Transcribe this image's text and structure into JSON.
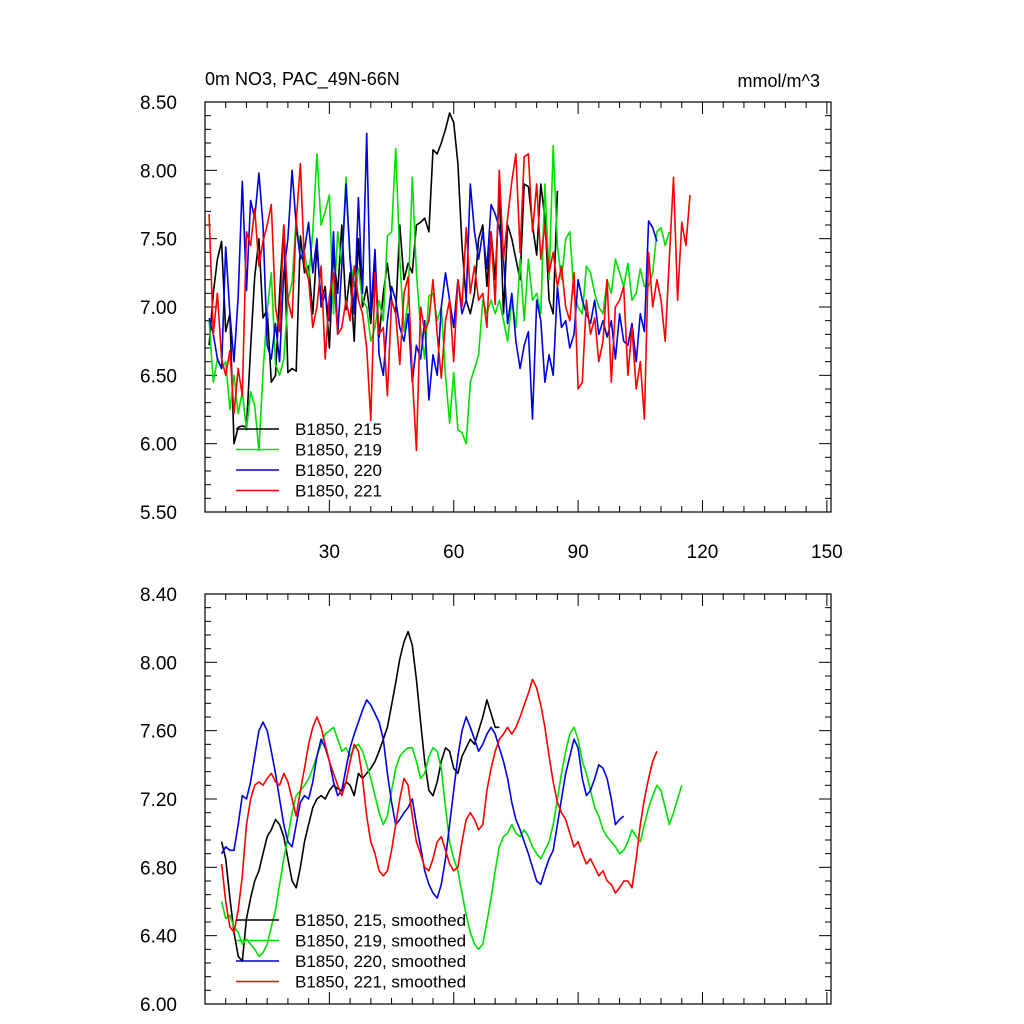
{
  "chart_data": [
    {
      "type": "line",
      "title": "0m NO3, PAC_49N-66N",
      "units": "mmol/m^3",
      "xlabel": "",
      "ylabel": "",
      "xlim": [
        0,
        151
      ],
      "ylim": [
        5.5,
        8.5
      ],
      "xticks": [
        30,
        60,
        90,
        120,
        150
      ],
      "xtick_labels": [
        "30",
        "60",
        "90",
        "120",
        "150"
      ],
      "yticks": [
        5.5,
        6.0,
        6.5,
        7.0,
        7.5,
        8.0,
        8.5
      ],
      "ytick_labels": [
        "5.50",
        "6.00",
        "6.50",
        "7.00",
        "7.50",
        "8.00",
        "8.50"
      ],
      "legend_position": "bottom-left",
      "series": [
        {
          "name": "B1850, 215",
          "color": "#000000",
          "x_start": 1,
          "values": [
            6.72,
            7.1,
            7.35,
            7.48,
            6.82,
            6.95,
            6.0,
            6.12,
            6.13,
            6.12,
            6.7,
            7.22,
            7.5,
            6.92,
            6.98,
            6.45,
            6.5,
            7.1,
            7.6,
            6.52,
            6.55,
            6.53,
            7.52,
            7.25,
            7.3,
            6.95,
            7.44,
            7.05,
            7.15,
            6.7,
            7.4,
            7.1,
            7.6,
            6.98,
            7.25,
            6.75,
            7.5,
            7.0,
            7.15,
            6.88,
            7.35,
            6.78,
            7.1,
            7.32,
            7.05,
            6.95,
            7.6,
            7.2,
            7.32,
            7.25,
            7.6,
            7.62,
            7.65,
            7.55,
            8.15,
            8.12,
            8.2,
            8.3,
            8.42,
            8.35,
            8.05,
            7.45,
            7.05,
            6.95,
            7.1,
            7.5,
            7.6,
            7.15,
            7.55,
            7.2,
            7.85,
            6.95,
            7.6,
            7.5,
            7.35,
            7.2,
            7.9,
            7.88,
            7.6,
            7.38,
            7.9,
            7.65,
            7.05,
            6.95,
            7.85
          ]
        },
        {
          "name": "B1850, 219",
          "color": "#00e000",
          "x_start": 1,
          "values": [
            6.9,
            6.45,
            6.62,
            6.55,
            6.6,
            6.25,
            6.5,
            6.22,
            6.38,
            6.1,
            6.38,
            6.28,
            5.95,
            6.52,
            6.98,
            7.25,
            6.58,
            6.5,
            6.62,
            7.05,
            7.18,
            7.65,
            7.35,
            7.4,
            7.2,
            7.55,
            8.12,
            7.6,
            7.7,
            7.82,
            6.95,
            7.55,
            7.3,
            7.95,
            7.35,
            7.15,
            7.28,
            7.05,
            7.0,
            6.75,
            6.85,
            7.05,
            6.9,
            7.52,
            7.55,
            8.16,
            7.35,
            6.82,
            7.05,
            7.95,
            7.25,
            6.85,
            6.62,
            7.08,
            7.1,
            6.9,
            7.0,
            6.5,
            6.15,
            6.52,
            6.1,
            6.08,
            6.0,
            6.45,
            6.55,
            6.65,
            7.05,
            6.95,
            7.05,
            6.95,
            7.05,
            6.9,
            6.75,
            7.05,
            6.85,
            7.35,
            6.9,
            7.35,
            7.05,
            7.1,
            6.95,
            7.9,
            7.2,
            8.18,
            7.45,
            7.2,
            7.5,
            7.55,
            7.1,
            7.0,
            6.95,
            7.3,
            7.25,
            7.1,
            7.0,
            6.95,
            7.2,
            7.1,
            7.35,
            7.25,
            7.15,
            7.32,
            7.05,
            7.1,
            7.28,
            7.15,
            7.15,
            7.25,
            7.55,
            7.58,
            7.45,
            7.55
          ]
        },
        {
          "name": "B1850, 220",
          "color": "#0000e0",
          "x_start": 1,
          "values": [
            6.92,
            6.8,
            6.62,
            6.55,
            7.44,
            6.95,
            6.6,
            7.08,
            7.92,
            7.12,
            7.78,
            7.65,
            7.98,
            7.6,
            6.72,
            6.62,
            6.88,
            6.6,
            7.25,
            7.5,
            8.0,
            7.6,
            7.35,
            7.42,
            7.62,
            7.25,
            7.5,
            7.0,
            7.1,
            6.9,
            7.55,
            6.8,
            7.3,
            7.9,
            7.35,
            6.95,
            7.8,
            7.1,
            8.27,
            6.95,
            7.42,
            6.65,
            6.5,
            6.9,
            7.15,
            7.05,
            6.85,
            6.75,
            6.95,
            6.45,
            6.72,
            6.62,
            6.9,
            6.32,
            6.65,
            6.5,
            7.0,
            7.25,
            7.05,
            6.85,
            7.2,
            6.95,
            7.05,
            7.9,
            7.55,
            7.35,
            7.55,
            7.28,
            7.75,
            7.68,
            7.58,
            7.35,
            6.88,
            7.1,
            6.75,
            6.55,
            6.72,
            6.82,
            6.18,
            7.05,
            6.9,
            6.45,
            6.65,
            6.5,
            7.15,
            6.85,
            6.9,
            6.7,
            6.8,
            7.2,
            7.05,
            6.95,
            6.88,
            7.05,
            6.8,
            6.9,
            6.78,
            6.9,
            6.62,
            6.95,
            6.75,
            6.72,
            6.88,
            6.6,
            6.95,
            6.82,
            7.63,
            7.58,
            7.48
          ]
        },
        {
          "name": "B1850, 221",
          "color": "#ff0000",
          "x_start": 1,
          "values": [
            7.68,
            6.8,
            7.1,
            6.62,
            6.5,
            6.68,
            6.22,
            6.55,
            6.35,
            7.55,
            7.45,
            7.72,
            7.3,
            7.48,
            7.6,
            7.75,
            7.0,
            6.82,
            7.6,
            7.05,
            6.92,
            7.62,
            8.05,
            7.3,
            7.2,
            6.85,
            7.0,
            7.3,
            6.62,
            7.08,
            7.25,
            6.8,
            6.85,
            7.05,
            6.9,
            7.3,
            7.05,
            6.95,
            6.7,
            6.17,
            7.25,
            6.8,
            6.85,
            6.35,
            7.05,
            6.95,
            6.58,
            7.1,
            7.22,
            6.5,
            5.95,
            7.0,
            6.82,
            6.9,
            7.2,
            6.8,
            6.48,
            6.9,
            7.05,
            6.6,
            7.2,
            7.0,
            7.58,
            7.1,
            7.3,
            7.05,
            7.1,
            6.85,
            7.55,
            7.02,
            8.0,
            7.35,
            7.65,
            7.92,
            8.12,
            7.4,
            8.1,
            8.12,
            7.55,
            7.9,
            7.35,
            7.6,
            7.25,
            7.4,
            7.15,
            7.3,
            7.0,
            6.9,
            7.25,
            6.4,
            6.45,
            7.05,
            6.8,
            6.92,
            6.6,
            6.75,
            7.2,
            6.45,
            7.0,
            7.05,
            7.15,
            6.5,
            6.85,
            6.4,
            6.6,
            6.18,
            7.4,
            7.0,
            7.2,
            7.05,
            6.75,
            7.35,
            7.95,
            7.05,
            7.62,
            7.45,
            7.82
          ]
        }
      ]
    },
    {
      "type": "line",
      "title": "",
      "xlabel": "",
      "ylabel": "",
      "xlim": [
        0,
        151
      ],
      "ylim": [
        6.0,
        8.4
      ],
      "xticks": [
        30,
        60,
        90,
        120,
        150
      ],
      "xtick_labels": [],
      "yticks": [
        6.0,
        6.4,
        6.8,
        7.2,
        7.6,
        8.0,
        8.4
      ],
      "ytick_labels": [
        "6.00",
        "6.40",
        "6.80",
        "7.20",
        "7.60",
        "8.00",
        "8.40"
      ],
      "legend_position": "bottom-left",
      "series": [
        {
          "name": "B1850, 215, smoothed",
          "color": "#000000",
          "x_start": 4,
          "values": [
            6.95,
            6.85,
            6.62,
            6.42,
            6.28,
            6.25,
            6.5,
            6.62,
            6.72,
            6.78,
            6.88,
            6.98,
            7.02,
            7.08,
            7.05,
            6.98,
            6.85,
            6.72,
            6.68,
            6.8,
            6.95,
            7.05,
            7.15,
            7.2,
            7.22,
            7.2,
            7.25,
            7.28,
            7.26,
            7.25,
            7.3,
            7.28,
            7.22,
            7.35,
            7.32,
            7.35,
            7.38,
            7.42,
            7.48,
            7.55,
            7.62,
            7.75,
            7.88,
            8.02,
            8.12,
            8.18,
            8.1,
            7.9,
            7.65,
            7.42,
            7.25,
            7.22,
            7.3,
            7.42,
            7.5,
            7.48,
            7.38,
            7.35,
            7.45,
            7.5,
            7.55,
            7.52,
            7.6,
            7.68,
            7.78,
            7.7,
            7.62,
            7.62
          ]
        },
        {
          "name": "B1850, 219, smoothed",
          "color": "#00e000",
          "x_start": 4,
          "values": [
            6.6,
            6.5,
            6.52,
            6.45,
            6.42,
            6.35,
            6.38,
            6.35,
            6.32,
            6.28,
            6.3,
            6.35,
            6.45,
            6.55,
            6.7,
            6.85,
            6.98,
            7.12,
            7.22,
            7.25,
            7.28,
            7.32,
            7.38,
            7.45,
            7.52,
            7.58,
            7.6,
            7.62,
            7.55,
            7.48,
            7.5,
            7.45,
            7.5,
            7.52,
            7.48,
            7.4,
            7.32,
            7.22,
            7.12,
            7.05,
            7.1,
            7.25,
            7.38,
            7.45,
            7.48,
            7.5,
            7.5,
            7.42,
            7.32,
            7.35,
            7.45,
            7.5,
            7.48,
            7.38,
            7.15,
            6.95,
            6.85,
            6.78,
            6.65,
            6.52,
            6.42,
            6.35,
            6.32,
            6.35,
            6.48,
            6.62,
            6.78,
            6.92,
            6.98,
            7.0,
            7.05,
            7.0,
            6.98,
            7.02,
            6.98,
            6.92,
            6.88,
            6.85,
            6.9,
            6.95,
            7.05,
            7.2,
            7.35,
            7.48,
            7.58,
            7.62,
            7.55,
            7.42,
            7.35,
            7.25,
            7.15,
            7.1,
            7.02,
            6.98,
            6.95,
            6.92,
            6.88,
            6.9,
            6.95,
            7.02,
            6.98,
            6.95,
            7.05,
            7.15,
            7.22,
            7.28,
            7.25,
            7.15,
            7.05,
            7.12,
            7.2,
            7.28
          ]
        },
        {
          "name": "B1850, 220, smoothed",
          "color": "#0000e0",
          "x_start": 4,
          "values": [
            6.88,
            6.92,
            6.9,
            6.9,
            7.05,
            7.22,
            7.2,
            7.3,
            7.45,
            7.6,
            7.65,
            7.6,
            7.48,
            7.35,
            7.2,
            7.05,
            6.95,
            6.92,
            7.05,
            7.18,
            7.22,
            7.2,
            7.3,
            7.45,
            7.55,
            7.5,
            7.42,
            7.3,
            7.22,
            7.25,
            7.38,
            7.5,
            7.58,
            7.65,
            7.72,
            7.78,
            7.75,
            7.7,
            7.65,
            7.55,
            7.35,
            7.18,
            7.05,
            7.08,
            7.12,
            7.15,
            7.2,
            7.05,
            6.92,
            6.78,
            6.7,
            6.65,
            6.62,
            6.7,
            6.85,
            7.05,
            7.25,
            7.45,
            7.6,
            7.68,
            7.62,
            7.55,
            7.48,
            7.52,
            7.58,
            7.62,
            7.58,
            7.5,
            7.42,
            7.32,
            7.18,
            7.08,
            7.02,
            6.95,
            6.88,
            6.8,
            6.72,
            6.7,
            6.78,
            6.85,
            6.9,
            7.05,
            7.2,
            7.35,
            7.45,
            7.55,
            7.5,
            7.32,
            7.22,
            7.25,
            7.32,
            7.4,
            7.38,
            7.32,
            7.2,
            7.05,
            7.08,
            7.1
          ]
        },
        {
          "name": "B1850, 221, smoothed",
          "color": "#ff0000",
          "x_start": 4,
          "values": [
            6.82,
            6.6,
            6.45,
            6.42,
            6.55,
            6.75,
            7.05,
            7.2,
            7.28,
            7.3,
            7.28,
            7.32,
            7.35,
            7.3,
            7.28,
            7.35,
            7.3,
            7.2,
            7.1,
            7.25,
            7.38,
            7.52,
            7.62,
            7.68,
            7.62,
            7.52,
            7.42,
            7.35,
            7.28,
            7.22,
            7.3,
            7.42,
            7.52,
            7.48,
            7.32,
            7.1,
            6.95,
            6.88,
            6.78,
            6.75,
            6.78,
            6.9,
            7.05,
            7.2,
            7.32,
            7.28,
            7.1,
            6.95,
            6.88,
            6.8,
            6.78,
            6.85,
            6.95,
            6.98,
            6.9,
            6.82,
            6.78,
            6.8,
            6.95,
            7.08,
            7.12,
            7.08,
            7.02,
            7.05,
            7.25,
            7.38,
            7.48,
            7.55,
            7.58,
            7.62,
            7.58,
            7.62,
            7.68,
            7.75,
            7.82,
            7.9,
            7.85,
            7.75,
            7.62,
            7.45,
            7.3,
            7.18,
            7.12,
            7.08,
            7.0,
            6.92,
            6.95,
            6.88,
            6.82,
            6.85,
            6.8,
            6.75,
            6.78,
            6.72,
            6.7,
            6.65,
            6.68,
            6.72,
            6.72,
            6.68,
            6.85,
            7.05,
            7.2,
            7.32,
            7.42,
            7.48
          ]
        }
      ]
    }
  ]
}
